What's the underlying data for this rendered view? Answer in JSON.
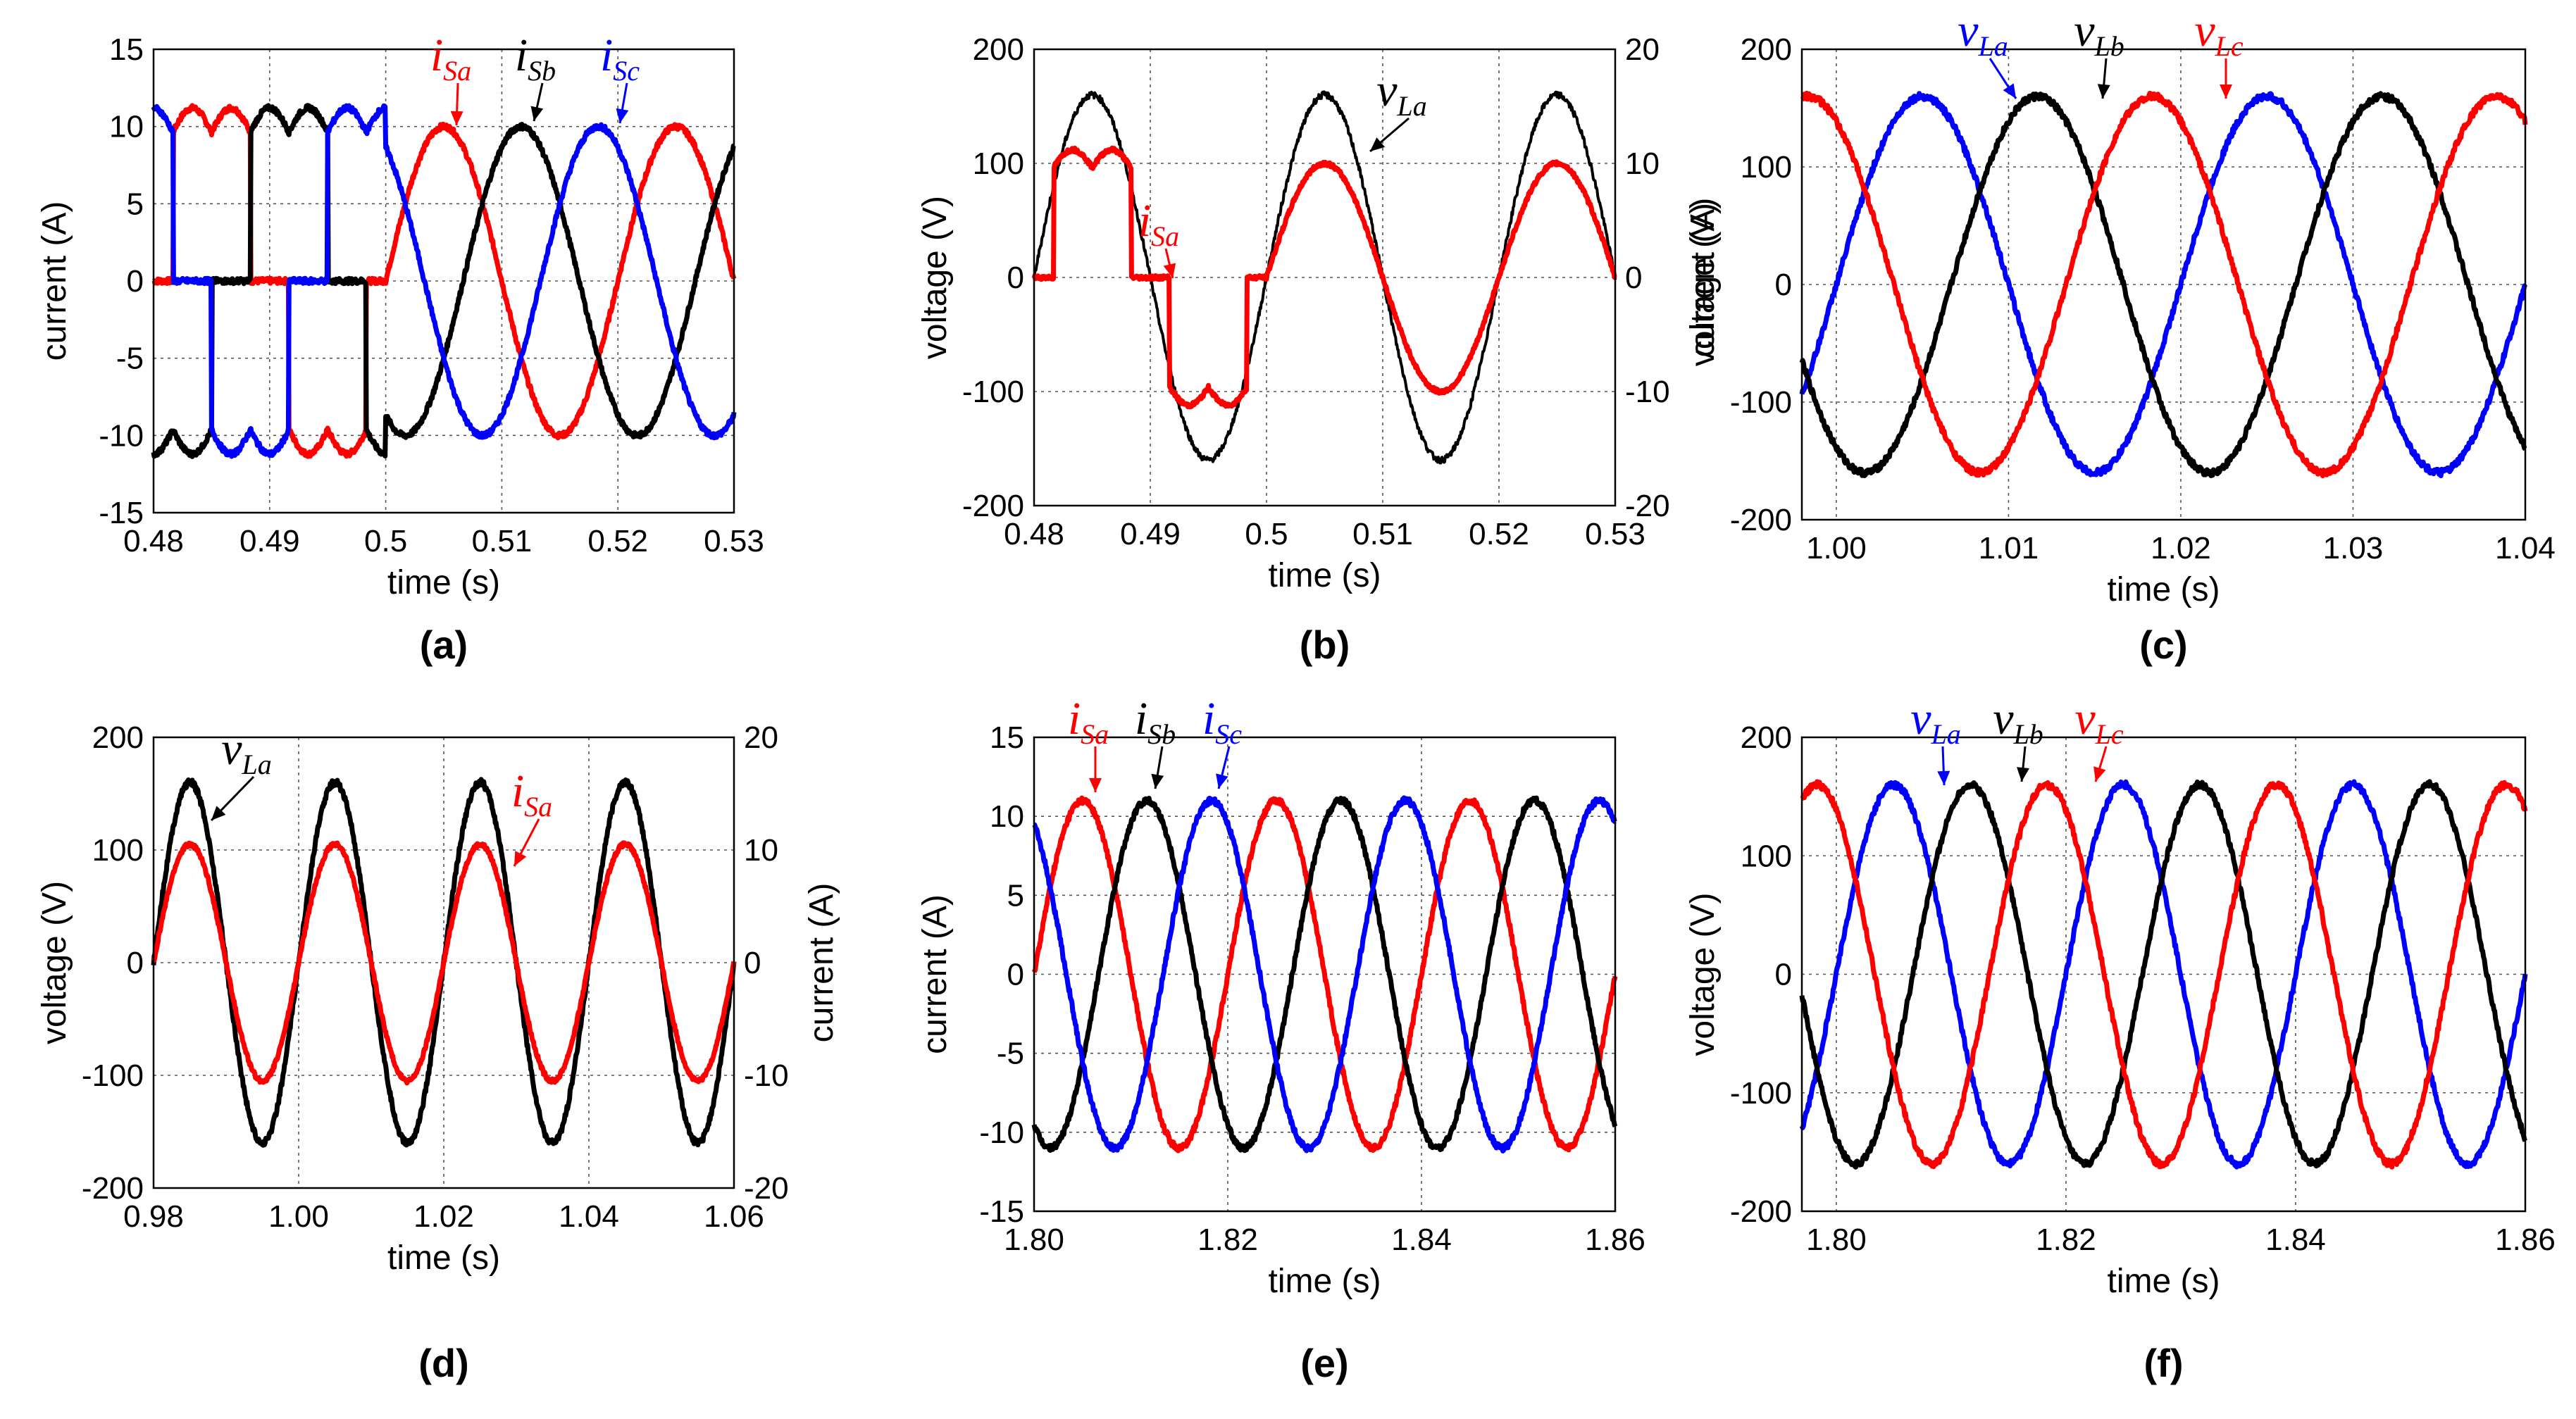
{
  "chart_data": [
    {
      "id": "a",
      "type": "line",
      "panel_label": "(a)",
      "xlabel": "time (s)",
      "ylabel_left": "current (A)",
      "xlim": [
        0.48,
        0.53
      ],
      "ylim_left": [
        -15,
        15
      ],
      "xticks": [
        "0.48",
        "0.49",
        "0.5",
        "0.51",
        "0.52",
        "0.53"
      ],
      "yticks_left": [
        "15",
        "10",
        "5",
        "0",
        "-5",
        "-10",
        "-15"
      ],
      "grid": true,
      "description": "Before t=0.5 s source currents are distorted quasi-square pulses; after t=0.5 s sinusoidal, amplitude ~10 A, 50 Hz",
      "series": [
        {
          "name": "iSa",
          "symbol": "i",
          "sub": "Sa",
          "color": "#ff0000",
          "amplitude": 10,
          "frequency_hz": 50,
          "phase_deg": 0
        },
        {
          "name": "iSb",
          "symbol": "i",
          "sub": "Sb",
          "color": "#000000",
          "amplitude": 10,
          "frequency_hz": 50,
          "phase_deg": -120
        },
        {
          "name": "iSc",
          "symbol": "i",
          "sub": "Sc",
          "color": "#0000ff",
          "amplitude": 10,
          "frequency_hz": 50,
          "phase_deg": 120
        }
      ]
    },
    {
      "id": "b",
      "type": "line",
      "panel_label": "(b)",
      "xlabel": "time (s)",
      "ylabel_left": "voltage (V)",
      "ylabel_right": "current (A)",
      "xlim": [
        0.48,
        0.53
      ],
      "ylim_left": [
        -200,
        200
      ],
      "ylim_right": [
        -20,
        20
      ],
      "xticks": [
        "0.48",
        "0.49",
        "0.5",
        "0.51",
        "0.52",
        "0.53"
      ],
      "yticks_left": [
        "200",
        "100",
        "0",
        "-100",
        "-200"
      ],
      "yticks_right": [
        "20",
        "10",
        "0",
        "-10",
        "-20"
      ],
      "grid": true,
      "series": [
        {
          "name": "vLa",
          "symbol": "v",
          "sub": "La",
          "color": "#000000",
          "amplitude": 160,
          "frequency_hz": 50,
          "phase_deg": 0,
          "axis": "left"
        },
        {
          "name": "iSa",
          "symbol": "i",
          "sub": "Sa",
          "color": "#ff0000",
          "amplitude": 10,
          "frequency_hz": 50,
          "phase_deg": 0,
          "axis": "right"
        }
      ]
    },
    {
      "id": "c",
      "type": "line",
      "panel_label": "(c)",
      "xlabel": "time (s)",
      "ylabel_left": "voltage (V)",
      "xlim": [
        0.998,
        1.04
      ],
      "ylim_left": [
        -200,
        200
      ],
      "xticks": [
        "1.00",
        "1.01",
        "1.02",
        "1.03",
        "1.04"
      ],
      "xtick_values": [
        1.0,
        1.01,
        1.02,
        1.03,
        1.04
      ],
      "yticks_left": [
        "200",
        "100",
        "0",
        "-100",
        "-200"
      ],
      "grid": true,
      "series": [
        {
          "name": "vLa",
          "symbol": "v",
          "sub": "La",
          "color": "#0000ff",
          "amplitude": 160,
          "frequency_hz": 50,
          "phase_deg": 0
        },
        {
          "name": "vLb",
          "symbol": "v",
          "sub": "Lb",
          "color": "#000000",
          "amplitude": 160,
          "frequency_hz": 50,
          "phase_deg": -120
        },
        {
          "name": "vLc",
          "symbol": "v",
          "sub": "Lc",
          "color": "#ff0000",
          "amplitude": 160,
          "frequency_hz": 50,
          "phase_deg": 120
        }
      ]
    },
    {
      "id": "d",
      "type": "line",
      "panel_label": "(d)",
      "xlabel": "time (s)",
      "ylabel_left": "voltage (V)",
      "ylabel_right": "current (A)",
      "xlim": [
        0.98,
        1.06
      ],
      "ylim_left": [
        -200,
        200
      ],
      "ylim_right": [
        -20,
        20
      ],
      "xticks": [
        "0.98",
        "1.00",
        "1.02",
        "1.04",
        "1.06"
      ],
      "yticks_left": [
        "200",
        "100",
        "0",
        "-100",
        "-200"
      ],
      "yticks_right": [
        "20",
        "10",
        "0",
        "-10",
        "-20"
      ],
      "grid": true,
      "series": [
        {
          "name": "vLa",
          "symbol": "v",
          "sub": "La",
          "color": "#000000",
          "amplitude": 160,
          "frequency_hz": 50,
          "phase_deg": 0,
          "axis": "left"
        },
        {
          "name": "iSa",
          "symbol": "i",
          "sub": "Sa",
          "color": "#ff0000",
          "amplitude": 10.5,
          "frequency_hz": 50,
          "phase_deg": 0,
          "axis": "right"
        }
      ]
    },
    {
      "id": "e",
      "type": "line",
      "panel_label": "(e)",
      "xlabel": "time (s)",
      "ylabel_left": "current (A)",
      "xlim": [
        1.8,
        1.86
      ],
      "ylim_left": [
        -15,
        15
      ],
      "xticks": [
        "1.80",
        "1.82",
        "1.84",
        "1.86"
      ],
      "yticks_left": [
        "15",
        "10",
        "5",
        "0",
        "-5",
        "-10",
        "-15"
      ],
      "grid": true,
      "series": [
        {
          "name": "iSa",
          "symbol": "i",
          "sub": "Sa",
          "color": "#ff0000",
          "amplitude": 11,
          "frequency_hz": 50,
          "phase_deg": 0
        },
        {
          "name": "iSb",
          "symbol": "i",
          "sub": "Sb",
          "color": "#000000",
          "amplitude": 11,
          "frequency_hz": 50,
          "phase_deg": -120
        },
        {
          "name": "iSc",
          "symbol": "i",
          "sub": "Sc",
          "color": "#0000ff",
          "amplitude": 11,
          "frequency_hz": 50,
          "phase_deg": 120
        }
      ]
    },
    {
      "id": "f",
      "type": "line",
      "panel_label": "(f)",
      "xlabel": "time (s)",
      "ylabel_left": "voltage (V)",
      "xlim": [
        1.797,
        1.86
      ],
      "ylim_left": [
        -200,
        200
      ],
      "xticks": [
        "1.80",
        "1.82",
        "1.84",
        "1.86"
      ],
      "xtick_values": [
        1.8,
        1.82,
        1.84,
        1.86
      ],
      "yticks_left": [
        "200",
        "100",
        "0",
        "-100",
        "-200"
      ],
      "grid": true,
      "series": [
        {
          "name": "vLa",
          "symbol": "v",
          "sub": "La",
          "color": "#0000ff",
          "amplitude": 160,
          "frequency_hz": 50,
          "phase_deg": 0
        },
        {
          "name": "vLb",
          "symbol": "v",
          "sub": "Lb",
          "color": "#000000",
          "amplitude": 160,
          "frequency_hz": 50,
          "phase_deg": -120
        },
        {
          "name": "vLc",
          "symbol": "v",
          "sub": "Lc",
          "color": "#ff0000",
          "amplitude": 160,
          "frequency_hz": 50,
          "phase_deg": 120
        }
      ]
    }
  ]
}
